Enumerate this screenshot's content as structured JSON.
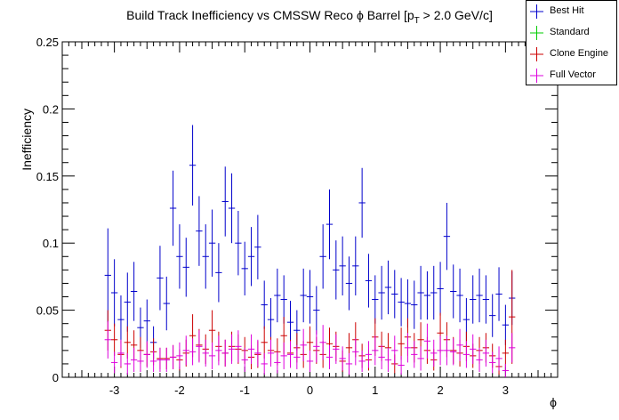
{
  "chart_data": {
    "type": "scatter",
    "title_main": "Build Track Inefficiency vs CMSSW Reco ϕ Barrel [p",
    "title_sub": "T",
    "title_rest": " > 2.0 GeV/c]",
    "xlabel": "ϕ",
    "ylabel": "Inefficiency",
    "xlim": [
      -3.8,
      3.8
    ],
    "ylim": [
      0,
      0.25
    ],
    "xticks": [
      "-3",
      "-2",
      "-1",
      "0",
      "1",
      "2",
      "3"
    ],
    "yticks": [
      "0",
      "0.05",
      "0.1",
      "0.15",
      "0.2",
      "0.25"
    ],
    "legend_position": "top-right",
    "series": [
      {
        "name": "Best Hit",
        "color": "#0000cc",
        "x": [
          -3.1,
          -3.0,
          -2.9,
          -2.8,
          -2.7,
          -2.6,
          -2.5,
          -2.4,
          -2.3,
          -2.2,
          -2.1,
          -2.0,
          -1.9,
          -1.8,
          -1.7,
          -1.6,
          -1.5,
          -1.4,
          -1.3,
          -1.2,
          -1.1,
          -1.0,
          -0.9,
          -0.8,
          -0.7,
          -0.6,
          -0.5,
          -0.4,
          -0.3,
          -0.2,
          -0.1,
          0.0,
          0.1,
          0.2,
          0.3,
          0.4,
          0.5,
          0.6,
          0.7,
          0.8,
          0.9,
          1.0,
          1.1,
          1.2,
          1.3,
          1.4,
          1.5,
          1.6,
          1.7,
          1.8,
          1.9,
          2.0,
          2.1,
          2.2,
          2.3,
          2.4,
          2.5,
          2.6,
          2.7,
          2.8,
          2.9,
          3.0,
          3.1
        ],
        "y": [
          0.076,
          0.063,
          0.043,
          0.056,
          0.064,
          0.037,
          0.042,
          0.026,
          0.074,
          0.055,
          0.126,
          0.09,
          0.082,
          0.158,
          0.109,
          0.09,
          0.1,
          0.078,
          0.131,
          0.126,
          0.1,
          0.081,
          0.09,
          0.097,
          0.054,
          0.043,
          0.061,
          0.058,
          0.041,
          0.035,
          0.061,
          0.06,
          0.05,
          0.09,
          0.114,
          0.08,
          0.083,
          0.07,
          0.083,
          0.13,
          0.072,
          0.058,
          0.063,
          0.067,
          0.062,
          0.056,
          0.055,
          0.054,
          0.063,
          0.061,
          0.063,
          0.066,
          0.105,
          0.064,
          0.061,
          0.043,
          0.058,
          0.061,
          0.058,
          0.046,
          0.062,
          0.039,
          0.059
        ],
        "err": [
          0.035,
          0.025,
          0.018,
          0.022,
          0.022,
          0.015,
          0.016,
          0.012,
          0.024,
          0.02,
          0.028,
          0.024,
          0.022,
          0.03,
          0.026,
          0.024,
          0.025,
          0.022,
          0.026,
          0.026,
          0.024,
          0.02,
          0.022,
          0.024,
          0.018,
          0.016,
          0.02,
          0.018,
          0.016,
          0.015,
          0.02,
          0.02,
          0.018,
          0.024,
          0.026,
          0.022,
          0.022,
          0.02,
          0.022,
          0.026,
          0.02,
          0.018,
          0.02,
          0.02,
          0.018,
          0.018,
          0.018,
          0.018,
          0.02,
          0.018,
          0.02,
          0.02,
          0.025,
          0.02,
          0.02,
          0.016,
          0.018,
          0.02,
          0.018,
          0.016,
          0.02,
          0.015,
          0.02
        ]
      },
      {
        "name": "Standard",
        "color": "#00cc00",
        "x": [],
        "y": [],
        "err": []
      },
      {
        "name": "Clone Engine",
        "color": "#cc0000",
        "x": [
          -3.1,
          -3.0,
          -2.9,
          -2.8,
          -2.7,
          -2.6,
          -2.5,
          -2.4,
          -2.3,
          -2.2,
          -2.1,
          -2.0,
          -1.9,
          -1.8,
          -1.7,
          -1.6,
          -1.5,
          -1.4,
          -1.3,
          -1.2,
          -1.1,
          -1.0,
          -0.9,
          -0.8,
          -0.7,
          -0.6,
          -0.5,
          -0.4,
          -0.3,
          -0.2,
          -0.1,
          0.0,
          0.1,
          0.2,
          0.3,
          0.4,
          0.5,
          0.6,
          0.7,
          0.8,
          0.9,
          1.0,
          1.1,
          1.2,
          1.3,
          1.4,
          1.5,
          1.6,
          1.7,
          1.8,
          1.9,
          2.0,
          2.1,
          2.2,
          2.3,
          2.4,
          2.5,
          2.6,
          2.7,
          2.8,
          2.9,
          3.0,
          3.1
        ],
        "y": [
          0.035,
          0.028,
          0.017,
          0.026,
          0.024,
          0.02,
          0.017,
          0.019,
          0.014,
          0.014,
          0.015,
          0.013,
          0.018,
          0.031,
          0.024,
          0.021,
          0.035,
          0.023,
          0.018,
          0.023,
          0.021,
          0.02,
          0.015,
          0.017,
          0.026,
          0.02,
          0.019,
          0.031,
          0.018,
          0.022,
          0.017,
          0.026,
          0.02,
          0.017,
          0.025,
          0.023,
          0.012,
          0.022,
          0.028,
          0.016,
          0.013,
          0.03,
          0.023,
          0.022,
          0.01,
          0.025,
          0.03,
          0.022,
          0.028,
          0.02,
          0.013,
          0.033,
          0.028,
          0.02,
          0.018,
          0.023,
          0.016,
          0.02,
          0.022,
          0.016,
          0.008,
          0.018,
          0.045
        ],
        "err": [
          0.015,
          0.012,
          0.01,
          0.012,
          0.011,
          0.01,
          0.009,
          0.01,
          0.008,
          0.008,
          0.009,
          0.008,
          0.01,
          0.016,
          0.012,
          0.011,
          0.015,
          0.011,
          0.01,
          0.011,
          0.011,
          0.01,
          0.009,
          0.01,
          0.012,
          0.01,
          0.01,
          0.014,
          0.01,
          0.011,
          0.01,
          0.012,
          0.01,
          0.01,
          0.012,
          0.011,
          0.008,
          0.011,
          0.013,
          0.009,
          0.008,
          0.014,
          0.011,
          0.011,
          0.007,
          0.012,
          0.014,
          0.011,
          0.013,
          0.01,
          0.008,
          0.015,
          0.013,
          0.01,
          0.01,
          0.011,
          0.009,
          0.01,
          0.011,
          0.009,
          0.006,
          0.01,
          0.035
        ]
      },
      {
        "name": "Full Vector",
        "color": "#dd00dd",
        "x": [
          -3.1,
          -3.0,
          -2.9,
          -2.8,
          -2.7,
          -2.6,
          -2.5,
          -2.4,
          -2.3,
          -2.2,
          -2.1,
          -2.0,
          -1.9,
          -1.8,
          -1.7,
          -1.6,
          -1.5,
          -1.4,
          -1.3,
          -1.2,
          -1.1,
          -1.0,
          -0.9,
          -0.8,
          -0.7,
          -0.6,
          -0.5,
          -0.4,
          -0.3,
          -0.2,
          -0.1,
          0.0,
          0.1,
          0.2,
          0.3,
          0.4,
          0.5,
          0.6,
          0.7,
          0.8,
          0.9,
          1.0,
          1.1,
          1.2,
          1.3,
          1.4,
          1.5,
          1.6,
          1.7,
          1.8,
          1.9,
          2.0,
          2.1,
          2.2,
          2.3,
          2.4,
          2.5,
          2.6,
          2.7,
          2.8,
          2.9,
          3.0,
          3.1
        ],
        "y": [
          0.028,
          0.011,
          0.018,
          0.01,
          0.013,
          0.012,
          0.017,
          0.012,
          0.013,
          0.013,
          0.015,
          0.016,
          0.02,
          0.019,
          0.023,
          0.018,
          0.016,
          0.02,
          0.018,
          0.021,
          0.023,
          0.013,
          0.021,
          0.018,
          0.01,
          0.018,
          0.011,
          0.016,
          0.017,
          0.015,
          0.024,
          0.012,
          0.023,
          0.026,
          0.015,
          0.021,
          0.014,
          0.01,
          0.019,
          0.012,
          0.017,
          0.02,
          0.015,
          0.013,
          0.02,
          0.009,
          0.022,
          0.017,
          0.014,
          0.027,
          0.018,
          0.02,
          0.02,
          0.019,
          0.024,
          0.017,
          0.021,
          0.013,
          0.018,
          0.011,
          0.014,
          0.005,
          0.022
        ],
        "err": [
          0.014,
          0.008,
          0.01,
          0.008,
          0.009,
          0.008,
          0.01,
          0.008,
          0.009,
          0.009,
          0.009,
          0.01,
          0.011,
          0.01,
          0.012,
          0.01,
          0.01,
          0.011,
          0.01,
          0.011,
          0.012,
          0.009,
          0.011,
          0.01,
          0.008,
          0.01,
          0.008,
          0.01,
          0.01,
          0.009,
          0.012,
          0.008,
          0.012,
          0.013,
          0.009,
          0.011,
          0.009,
          0.008,
          0.01,
          0.008,
          0.01,
          0.011,
          0.009,
          0.009,
          0.011,
          0.007,
          0.011,
          0.01,
          0.009,
          0.013,
          0.01,
          0.011,
          0.011,
          0.01,
          0.012,
          0.01,
          0.011,
          0.009,
          0.01,
          0.008,
          0.009,
          0.005,
          0.011
        ]
      }
    ]
  }
}
